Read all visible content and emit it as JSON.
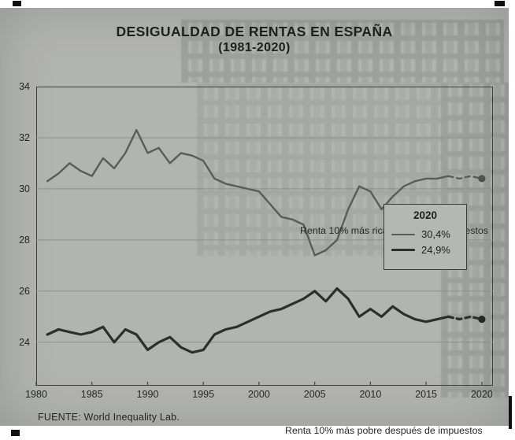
{
  "header": {
    "title": "DESIGUALDAD DE RENTAS EN ESPAÑA",
    "subtitle": "(1981-2020)"
  },
  "legend": {
    "title": "2020",
    "entries": [
      {
        "label": "30,4%"
      },
      {
        "label": "24,9%"
      }
    ]
  },
  "annotations": {
    "rich": "Renta 10% más rica después de impuestos",
    "poor": "Renta 10% más pobre después de impuestos"
  },
  "footer": {
    "source": "FUENTE: World Inequality Lab."
  },
  "chart_data": {
    "type": "line",
    "title": "DESIGUALDAD DE RENTAS EN ESPAÑA (1981-2020)",
    "x": [
      1981,
      1982,
      1983,
      1984,
      1985,
      1986,
      1987,
      1988,
      1989,
      1990,
      1991,
      1992,
      1993,
      1994,
      1995,
      1996,
      1997,
      1998,
      1999,
      2000,
      2001,
      2002,
      2003,
      2004,
      2005,
      2006,
      2007,
      2008,
      2009,
      2010,
      2011,
      2012,
      2013,
      2014,
      2015,
      2016,
      2017,
      2018,
      2019,
      2020
    ],
    "series": [
      {
        "name": "Renta 10% más rica después de impuestos",
        "final_value_label": "30,4%",
        "values": [
          30.3,
          30.6,
          31.0,
          30.7,
          30.5,
          31.2,
          30.8,
          31.4,
          32.3,
          31.4,
          31.6,
          31.0,
          31.4,
          31.3,
          31.1,
          30.4,
          30.2,
          30.1,
          30.0,
          29.9,
          29.4,
          28.9,
          28.8,
          28.6,
          27.4,
          27.6,
          28.0,
          29.2,
          30.1,
          29.9,
          29.2,
          29.7,
          30.1,
          30.3,
          30.4,
          30.4,
          30.5,
          30.4,
          30.5,
          30.4
        ]
      },
      {
        "name": "Renta 10% más pobre después de impuestos",
        "final_value_label": "24,9%",
        "values": [
          24.3,
          24.5,
          24.4,
          24.3,
          24.4,
          24.6,
          24.0,
          24.5,
          24.3,
          23.7,
          24.0,
          24.2,
          23.8,
          23.6,
          23.7,
          24.3,
          24.5,
          24.6,
          24.8,
          25.0,
          25.2,
          25.3,
          25.5,
          25.7,
          26.0,
          25.6,
          26.1,
          25.7,
          25.0,
          25.3,
          25.0,
          25.4,
          25.1,
          24.9,
          24.8,
          24.9,
          25.0,
          24.9,
          25.0,
          24.9
        ]
      }
    ],
    "xticks": [
      1980,
      1985,
      1990,
      1995,
      2000,
      2005,
      2010,
      2015,
      2020
    ],
    "yticks": [
      24,
      26,
      28,
      30,
      32,
      34
    ],
    "xlim": [
      1980,
      2021
    ],
    "ylim": [
      22.3,
      34
    ],
    "grid": "horizontal-only",
    "legend_position": "right-middle",
    "dashed_from_year": 2017,
    "end_marker": "dot"
  }
}
